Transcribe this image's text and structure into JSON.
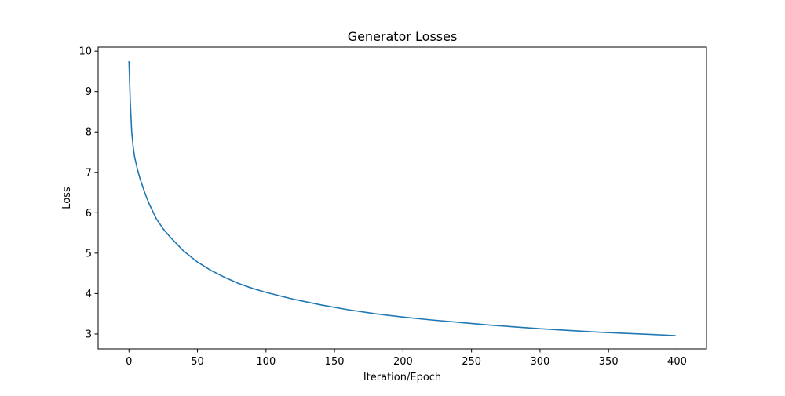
{
  "chart_data": {
    "type": "line",
    "title": "Generator Losses",
    "xlabel": "Iteration/Epoch",
    "ylabel": "Loss",
    "xlim": [
      -22.5,
      421.5
    ],
    "ylim": [
      2.63,
      10.1
    ],
    "xticks": [
      0,
      50,
      100,
      150,
      200,
      250,
      300,
      350,
      400
    ],
    "yticks": [
      3,
      4,
      5,
      6,
      7,
      8,
      9,
      10
    ],
    "grid": false,
    "legend": "none",
    "series": [
      {
        "color": "#1f77b4",
        "x": [
          0,
          1,
          2,
          3,
          4,
          5,
          6,
          8,
          10,
          12,
          15,
          20,
          25,
          30,
          40,
          50,
          60,
          70,
          80,
          90,
          100,
          120,
          140,
          160,
          180,
          200,
          220,
          240,
          260,
          280,
          300,
          320,
          340,
          360,
          380,
          399
        ],
        "y": [
          9.75,
          8.7,
          8.0,
          7.65,
          7.4,
          7.25,
          7.1,
          6.85,
          6.65,
          6.45,
          6.2,
          5.85,
          5.6,
          5.4,
          5.05,
          4.78,
          4.57,
          4.4,
          4.25,
          4.13,
          4.03,
          3.86,
          3.72,
          3.6,
          3.5,
          3.42,
          3.35,
          3.29,
          3.23,
          3.18,
          3.13,
          3.09,
          3.05,
          3.02,
          2.99,
          2.96
        ]
      }
    ]
  }
}
